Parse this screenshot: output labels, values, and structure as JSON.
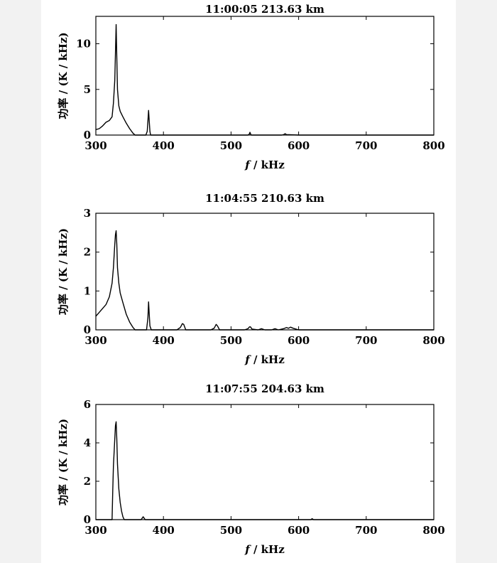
{
  "chart_data": [
    {
      "type": "line",
      "title": "11:00:05    213.63 km",
      "xlabel_italic": "f",
      "xlabel_rest": " / kHz",
      "ylabel": "功率 / (K / kHz)",
      "xlim": [
        300,
        800
      ],
      "ylim": [
        0,
        13
      ],
      "xticks": [
        "300",
        "400",
        "500",
        "600",
        "700",
        "800"
      ],
      "yticks": [
        "0",
        "5",
        "10"
      ],
      "ytick_values": [
        0,
        5,
        10
      ],
      "series": [
        {
          "x": [
            300,
            305,
            310,
            315,
            320,
            324,
            326,
            328,
            329,
            330,
            331,
            332,
            334,
            336,
            340,
            345,
            350,
            355,
            358,
            360,
            365,
            370,
            374,
            376,
            377,
            378,
            379,
            380,
            381,
            383,
            385,
            400,
            450,
            500,
            525,
            527,
            528,
            529,
            530,
            532,
            550,
            575,
            578,
            580,
            582,
            600,
            650,
            700,
            800
          ],
          "y": [
            0.6,
            0.7,
            1.0,
            1.4,
            1.6,
            2.0,
            3.5,
            6.0,
            9.0,
            12.1,
            8.5,
            5.0,
            3.2,
            2.6,
            2.0,
            1.3,
            0.7,
            0.2,
            0,
            0,
            0,
            0,
            0,
            0.4,
            1.5,
            2.7,
            1.5,
            0.4,
            0,
            0,
            0,
            0,
            0,
            0,
            0,
            0.1,
            0.3,
            0.1,
            0,
            0,
            0,
            0,
            0.05,
            0.15,
            0.05,
            0,
            0,
            0,
            0
          ]
        }
      ]
    },
    {
      "type": "line",
      "title": "11:04:55    210.63 km",
      "xlabel_italic": "f",
      "xlabel_rest": " / kHz",
      "ylabel": "功率 / (K / kHz)",
      "xlim": [
        300,
        800
      ],
      "ylim": [
        0,
        3
      ],
      "xticks": [
        "300",
        "400",
        "500",
        "600",
        "700",
        "800"
      ],
      "yticks": [
        "0",
        "1",
        "2",
        "3"
      ],
      "ytick_values": [
        0,
        1,
        2,
        3
      ],
      "series": [
        {
          "x": [
            300,
            305,
            310,
            315,
            320,
            324,
            326,
            328,
            329,
            330,
            331,
            332,
            334,
            336,
            340,
            345,
            350,
            355,
            358,
            360,
            370,
            375,
            377,
            378,
            379,
            380,
            382,
            385,
            420,
            425,
            428,
            430,
            433,
            470,
            475,
            478,
            480,
            483,
            520,
            525,
            527,
            528,
            529,
            531,
            540,
            545,
            550,
            560,
            565,
            570,
            578,
            582,
            585,
            588,
            592,
            596,
            600,
            650,
            700,
            800
          ],
          "y": [
            0.35,
            0.45,
            0.55,
            0.65,
            0.85,
            1.2,
            1.6,
            2.2,
            2.45,
            2.55,
            2.2,
            1.6,
            1.2,
            0.95,
            0.7,
            0.4,
            0.2,
            0.06,
            0,
            0,
            0,
            0,
            0.3,
            0.72,
            0.4,
            0.1,
            0,
            0,
            0,
            0.06,
            0.16,
            0.14,
            0,
            0,
            0.04,
            0.14,
            0.1,
            0,
            0,
            0.03,
            0.07,
            0.08,
            0.07,
            0.02,
            0,
            0.03,
            0,
            0,
            0.03,
            0,
            0.03,
            0.06,
            0.04,
            0.07,
            0.04,
            0.02,
            0,
            0,
            0,
            0
          ]
        }
      ]
    },
    {
      "type": "line",
      "title": "11:07:55    204.63 km",
      "xlabel_italic": "f",
      "xlabel_rest": " / kHz",
      "ylabel": "功率 / (K / kHz)",
      "xlim": [
        300,
        800
      ],
      "ylim": [
        0,
        6
      ],
      "xticks": [
        "300",
        "400",
        "500",
        "600",
        "700",
        "800"
      ],
      "yticks": [
        "0",
        "2",
        "4",
        "6"
      ],
      "ytick_values": [
        0,
        2,
        4,
        6
      ],
      "series": [
        {
          "x": [
            300,
            320,
            324,
            325,
            326,
            328,
            329,
            330,
            331,
            332,
            334,
            336,
            338,
            340,
            342,
            360,
            367,
            369,
            370,
            371,
            373,
            380,
            450,
            600,
            618,
            620,
            622,
            700,
            800
          ],
          "y": [
            0,
            0,
            0,
            1.5,
            2.8,
            4.2,
            4.9,
            5.1,
            4.2,
            2.9,
            1.6,
            0.9,
            0.45,
            0.15,
            0,
            0,
            0,
            0.1,
            0.15,
            0.1,
            0,
            0,
            0,
            0,
            0,
            0.05,
            0,
            0,
            0
          ]
        }
      ]
    }
  ]
}
